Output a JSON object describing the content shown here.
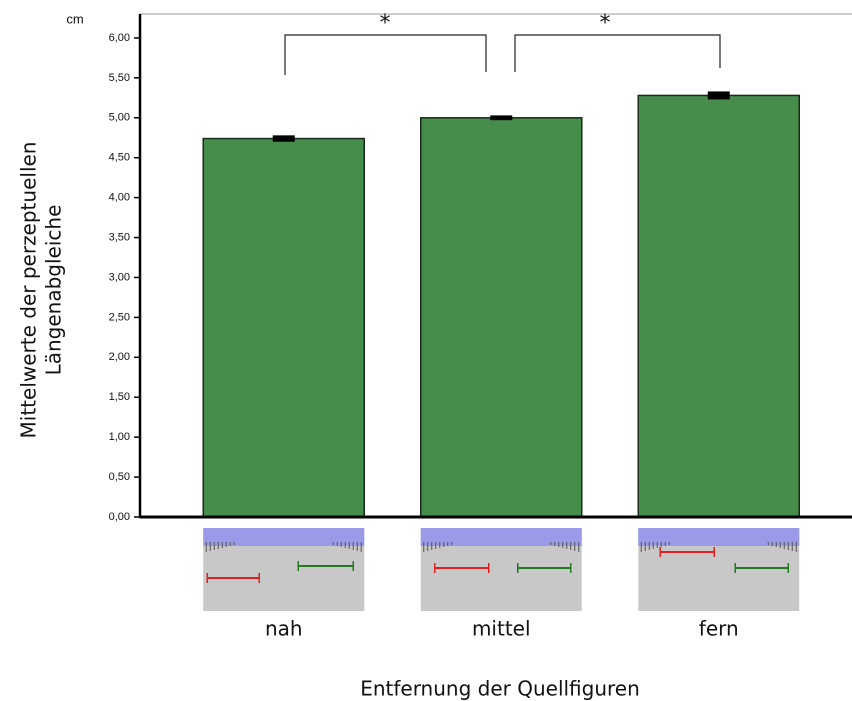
{
  "chart_data": {
    "type": "bar",
    "unit_label": "cm",
    "y_label": [
      "Mittelwerte der perzeptuellen",
      "Längenabgleiche"
    ],
    "x_label": "Entfernung der Quellfiguren",
    "categories": [
      "nah",
      "mittel",
      "fern"
    ],
    "values": [
      4.74,
      5.0,
      5.28
    ],
    "errors": [
      0.04,
      0.03,
      0.05
    ],
    "color": "#468c4a",
    "annotations": [
      "*",
      "*"
    ],
    "ylim": [
      0,
      6.3
    ],
    "yticks": [
      {
        "value": 0,
        "label": "0,00"
      },
      {
        "value": 0.5,
        "label": "0,50"
      },
      {
        "value": 1,
        "label": "1,00"
      },
      {
        "value": 1.5,
        "label": "1,50"
      },
      {
        "value": 2,
        "label": "2,00"
      },
      {
        "value": 2.5,
        "label": "2,50"
      },
      {
        "value": 3,
        "label": "3,00"
      },
      {
        "value": 3.5,
        "label": "3,50"
      },
      {
        "value": 4,
        "label": "4,00"
      },
      {
        "value": 4.5,
        "label": "4,50"
      },
      {
        "value": 5,
        "label": "5,00"
      },
      {
        "value": 5.5,
        "label": "5,50"
      },
      {
        "value": 6,
        "label": "6,00"
      }
    ]
  }
}
